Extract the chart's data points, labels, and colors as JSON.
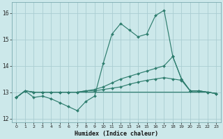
{
  "xlabel": "Humidex (Indice chaleur)",
  "background_color": "#cce8ea",
  "grid_color": "#aacdd2",
  "line_color": "#2e7d6e",
  "x": [
    0,
    1,
    2,
    3,
    4,
    5,
    6,
    7,
    8,
    9,
    10,
    11,
    12,
    13,
    14,
    15,
    16,
    17,
    18,
    19,
    20,
    21,
    22,
    23
  ],
  "line1": [
    12.8,
    13.05,
    12.8,
    12.85,
    12.75,
    12.6,
    12.45,
    12.3,
    12.65,
    12.85,
    14.1,
    15.2,
    15.6,
    15.35,
    15.1,
    15.2,
    15.9,
    16.1,
    14.35,
    13.5,
    13.05,
    13.05,
    13.0,
    12.95
  ],
  "line2": [
    12.8,
    13.05,
    13.0,
    13.0,
    13.0,
    13.0,
    13.0,
    13.0,
    13.05,
    13.1,
    13.2,
    13.35,
    13.5,
    13.6,
    13.7,
    13.8,
    13.9,
    14.0,
    14.35,
    13.5,
    13.05,
    13.05,
    13.0,
    12.95
  ],
  "line3": [
    12.8,
    13.05,
    13.0,
    13.0,
    13.0,
    13.0,
    13.0,
    13.0,
    13.05,
    13.05,
    13.1,
    13.15,
    13.2,
    13.3,
    13.38,
    13.45,
    13.5,
    13.55,
    13.5,
    13.45,
    13.05,
    13.05,
    13.0,
    12.95
  ],
  "line4": [
    12.8,
    13.05,
    13.0,
    13.0,
    13.0,
    13.0,
    13.0,
    13.0,
    13.0,
    13.0,
    13.0,
    13.0,
    13.0,
    13.0,
    13.0,
    13.0,
    13.0,
    13.0,
    13.0,
    13.0,
    13.0,
    13.0,
    13.0,
    12.95
  ],
  "ylim": [
    11.85,
    16.4
  ],
  "yticks": [
    12,
    13,
    14,
    15,
    16
  ],
  "xticks": [
    0,
    1,
    2,
    3,
    4,
    5,
    6,
    7,
    8,
    9,
    10,
    11,
    12,
    13,
    14,
    15,
    16,
    17,
    18,
    19,
    20,
    21,
    22,
    23
  ]
}
